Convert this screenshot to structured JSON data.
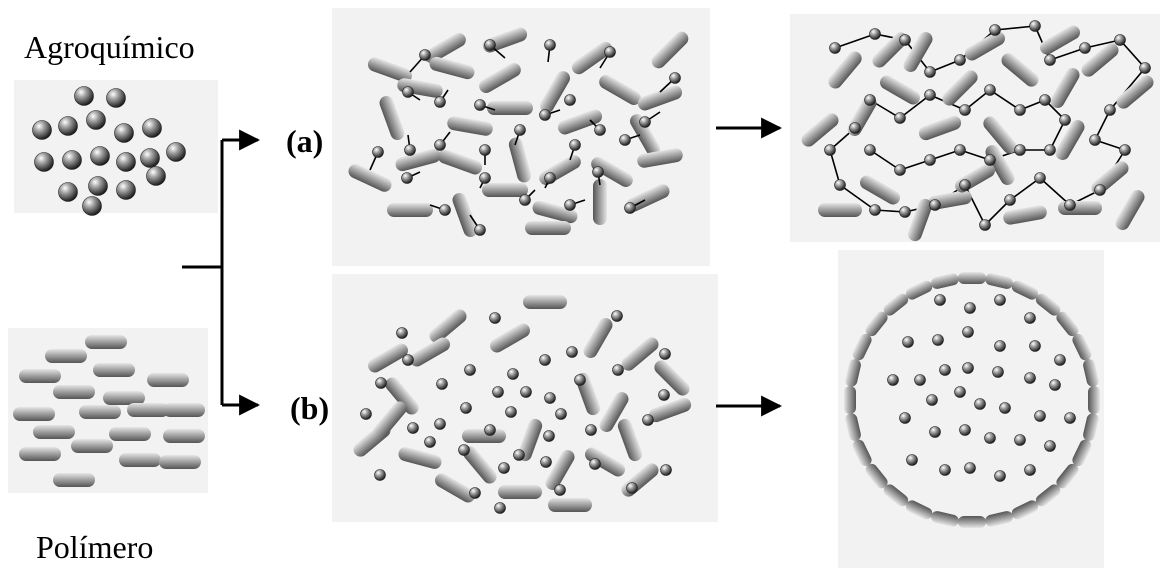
{
  "labels": {
    "agrochemical": "Agroquímico",
    "polymer": "Polímero",
    "route_a": "(a)",
    "route_b": "(b)"
  },
  "colors": {
    "panel_bg": "#f2f2f2",
    "particle": "#6e6e6e",
    "rod": "#9a9a9a",
    "line": "#000000"
  },
  "icons": {
    "particle": "sphere-icon",
    "rod": "rod-icon",
    "arrow": "arrow-right-icon"
  }
}
